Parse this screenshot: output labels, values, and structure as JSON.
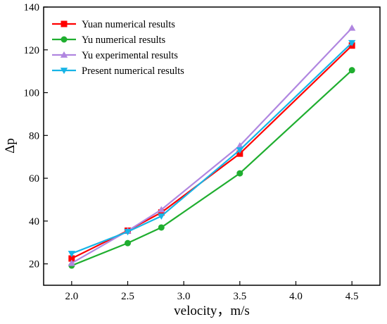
{
  "chart_data": {
    "type": "line",
    "xlabel": "velocity，m/s",
    "ylabel": "Δp",
    "xlim": [
      1.75,
      4.75
    ],
    "ylim": [
      10,
      140
    ],
    "xticks": [
      2.0,
      2.5,
      3.0,
      3.5,
      4.0,
      4.5
    ],
    "xtick_labels": [
      "2.0",
      "2.5",
      "3.0",
      "3.5",
      "4.0",
      "4.5"
    ],
    "yticks": [
      20,
      40,
      60,
      80,
      100,
      120,
      140
    ],
    "ytick_labels": [
      "20",
      "40",
      "60",
      "80",
      "100",
      "120",
      "140"
    ],
    "legend_position": "top-left",
    "grid": false,
    "series": [
      {
        "name": "Yuan numerical results",
        "color": "#ff0000",
        "marker": "square",
        "x": [
          2.0,
          2.5,
          2.8,
          3.5,
          4.5
        ],
        "y": [
          22.5,
          35.5,
          44,
          71.5,
          122
        ]
      },
      {
        "name": "Yu numerical results",
        "color": "#1fae2f",
        "marker": "circle",
        "x": [
          2.0,
          2.5,
          2.8,
          3.5,
          4.5
        ],
        "y": [
          19.2,
          29.7,
          37,
          62.3,
          110.5
        ]
      },
      {
        "name": "Yu experimental results",
        "color": "#b086e0",
        "marker": "triangle-up",
        "x": [
          2.0,
          2.5,
          2.8,
          3.5,
          4.5
        ],
        "y": [
          20.3,
          35.4,
          45.3,
          75.2,
          130.2
        ]
      },
      {
        "name": "Present numerical results",
        "color": "#17b4e6",
        "marker": "triangle-down",
        "x": [
          2.0,
          2.5,
          2.8,
          3.5,
          4.5
        ],
        "y": [
          24.8,
          35,
          42.3,
          73.2,
          123.3
        ]
      }
    ]
  }
}
